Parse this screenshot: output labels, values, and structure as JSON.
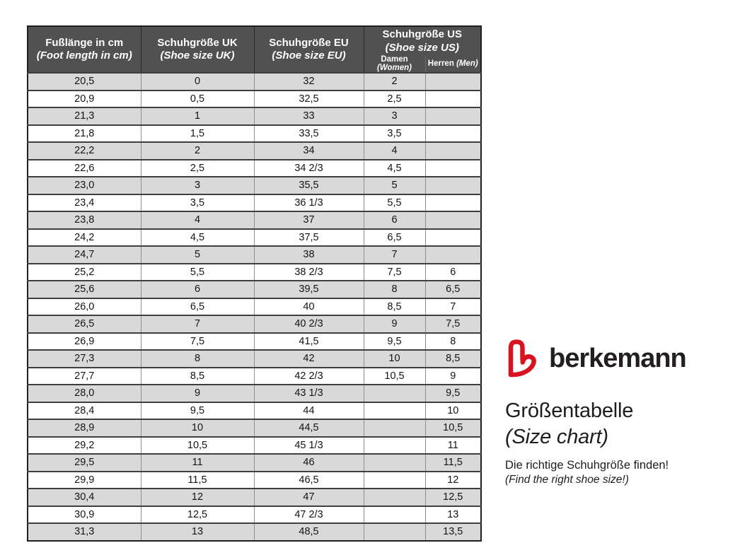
{
  "table": {
    "headers": {
      "cm": {
        "line1": "Fußlänge in cm",
        "line2": "(Foot length in cm)"
      },
      "uk": {
        "line1": "Schuhgröße UK",
        "line2": "(Shoe size UK)"
      },
      "eu": {
        "line1": "Schuhgröße EU",
        "line2": "(Shoe size EU)"
      },
      "us": {
        "line1": "Schuhgröße US",
        "line2": "(Shoe size US)",
        "sub_women_label": "Damen",
        "sub_women_paren": "(Women)",
        "sub_men_label": "Herren",
        "sub_men_paren": "(Men)"
      }
    },
    "rows": [
      [
        "20,5",
        "0",
        "32",
        "2",
        ""
      ],
      [
        "20,9",
        "0,5",
        "32,5",
        "2,5",
        ""
      ],
      [
        "21,3",
        "1",
        "33",
        "3",
        ""
      ],
      [
        "21,8",
        "1,5",
        "33,5",
        "3,5",
        ""
      ],
      [
        "22,2",
        "2",
        "34",
        "4",
        ""
      ],
      [
        "22,6",
        "2,5",
        "34 2/3",
        "4,5",
        ""
      ],
      [
        "23,0",
        "3",
        "35,5",
        "5",
        ""
      ],
      [
        "23,4",
        "3,5",
        "36 1/3",
        "5,5",
        ""
      ],
      [
        "23,8",
        "4",
        "37",
        "6",
        ""
      ],
      [
        "24,2",
        "4,5",
        "37,5",
        "6,5",
        ""
      ],
      [
        "24,7",
        "5",
        "38",
        "7",
        ""
      ],
      [
        "25,2",
        "5,5",
        "38 2/3",
        "7,5",
        "6"
      ],
      [
        "25,6",
        "6",
        "39,5",
        "8",
        "6,5"
      ],
      [
        "26,0",
        "6,5",
        "40",
        "8,5",
        "7"
      ],
      [
        "26,5",
        "7",
        "40 2/3",
        "9",
        "7,5"
      ],
      [
        "26,9",
        "7,5",
        "41,5",
        "9,5",
        "8"
      ],
      [
        "27,3",
        "8",
        "42",
        "10",
        "8,5"
      ],
      [
        "27,7",
        "8,5",
        "42 2/3",
        "10,5",
        "9"
      ],
      [
        "28,0",
        "9",
        "43 1/3",
        "",
        "9,5"
      ],
      [
        "28,4",
        "9,5",
        "44",
        "",
        "10"
      ],
      [
        "28,9",
        "10",
        "44,5",
        "",
        "10,5"
      ],
      [
        "29,2",
        "10,5",
        "45 1/3",
        "",
        "11"
      ],
      [
        "29,5",
        "11",
        "46",
        "",
        "11,5"
      ],
      [
        "29,9",
        "11,5",
        "46,5",
        "",
        "12"
      ],
      [
        "30,4",
        "12",
        "47",
        "",
        "12,5"
      ],
      [
        "30,9",
        "12,5",
        "47 2/3",
        "",
        "13"
      ],
      [
        "31,3",
        "13",
        "48,5",
        "",
        "13,5"
      ]
    ]
  },
  "branding": {
    "logo_icon": "berkemann-heart-b-logo",
    "wordmark": "berkemann",
    "title_de": "Größentabelle",
    "title_en": "(Size chart)",
    "tagline_de": "Die richtige Schuhgröße finden!",
    "tagline_en": "(Find the right shoe size!)"
  },
  "colors": {
    "header_bg": "#515151",
    "header_text": "#ffffff",
    "row_alt_bg": "#d9d9d9",
    "grid_vertical": "#8f8f8f",
    "grid_horizontal": "#3f3f3f",
    "outer_border": "#1f1f1f",
    "brand_red": "#d8121f",
    "text": "#1d1d1b"
  }
}
